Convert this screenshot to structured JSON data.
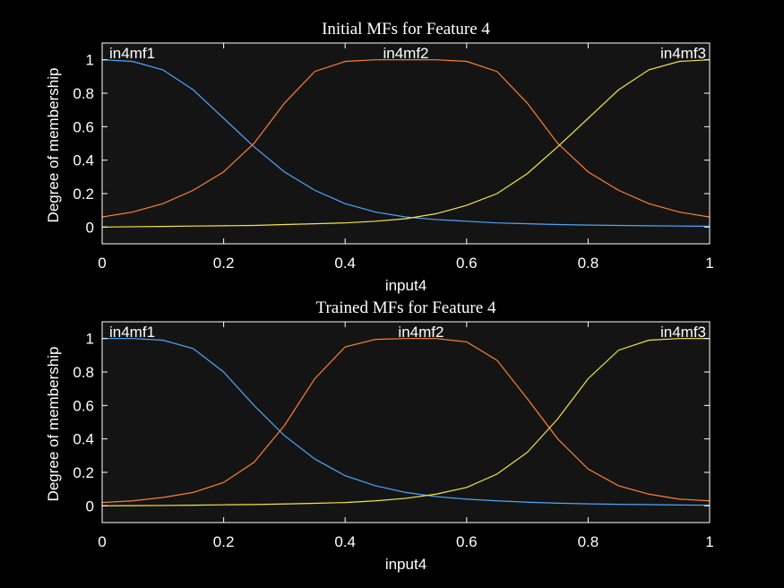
{
  "chart_data": [
    {
      "type": "line",
      "title": "Initial MFs for Feature 4",
      "xlabel": "input4",
      "ylabel": "Degree of membership",
      "xlim": [
        0,
        1
      ],
      "ylim": [
        -0.1,
        1.1
      ],
      "xticks": [
        "0",
        "0.2",
        "0.4",
        "0.6",
        "0.8",
        "1"
      ],
      "yticks": [
        "0",
        "0.2",
        "0.4",
        "0.6",
        "0.8",
        "1"
      ],
      "grid": false,
      "series": [
        {
          "name": "in4mf1",
          "color": "#4da6ff",
          "x": [
            0,
            0.05,
            0.1,
            0.15,
            0.2,
            0.25,
            0.3,
            0.35,
            0.4,
            0.45,
            0.5,
            0.55,
            0.6,
            0.65,
            0.7,
            0.75,
            0.8,
            0.85,
            0.9,
            0.95,
            1
          ],
          "y": [
            1.0,
            0.99,
            0.94,
            0.82,
            0.65,
            0.48,
            0.33,
            0.22,
            0.14,
            0.09,
            0.06,
            0.045,
            0.035,
            0.025,
            0.02,
            0.015,
            0.012,
            0.01,
            0.008,
            0.006,
            0.005
          ]
        },
        {
          "name": "in4mf2",
          "color": "#ff7f33",
          "x": [
            0,
            0.05,
            0.1,
            0.15,
            0.2,
            0.25,
            0.3,
            0.35,
            0.4,
            0.45,
            0.5,
            0.55,
            0.6,
            0.65,
            0.7,
            0.75,
            0.8,
            0.85,
            0.9,
            0.95,
            1
          ],
          "y": [
            0.06,
            0.09,
            0.14,
            0.22,
            0.33,
            0.5,
            0.74,
            0.93,
            0.99,
            1.0,
            1.0,
            1.0,
            0.99,
            0.93,
            0.74,
            0.5,
            0.33,
            0.22,
            0.14,
            0.09,
            0.06
          ]
        },
        {
          "name": "in4mf3",
          "color": "#f2e44a",
          "x": [
            0,
            0.05,
            0.1,
            0.15,
            0.2,
            0.25,
            0.3,
            0.35,
            0.4,
            0.45,
            0.5,
            0.55,
            0.6,
            0.65,
            0.7,
            0.75,
            0.8,
            0.85,
            0.9,
            0.95,
            1
          ],
          "y": [
            0.0,
            0.002,
            0.004,
            0.006,
            0.008,
            0.01,
            0.015,
            0.02,
            0.025,
            0.035,
            0.05,
            0.08,
            0.13,
            0.2,
            0.32,
            0.48,
            0.65,
            0.82,
            0.94,
            0.99,
            1.0
          ]
        }
      ],
      "annotations": [
        "in4mf1",
        "in4mf2",
        "in4mf3"
      ]
    },
    {
      "type": "line",
      "title": "Trained MFs for Feature 4",
      "xlabel": "input4",
      "ylabel": "Degree of membership",
      "xlim": [
        0,
        1
      ],
      "ylim": [
        -0.1,
        1.1
      ],
      "xticks": [
        "0",
        "0.2",
        "0.4",
        "0.6",
        "0.8",
        "1"
      ],
      "yticks": [
        "0",
        "0.2",
        "0.4",
        "0.6",
        "0.8",
        "1"
      ],
      "grid": false,
      "series": [
        {
          "name": "in4mf1",
          "color": "#4da6ff",
          "x": [
            0,
            0.05,
            0.1,
            0.15,
            0.2,
            0.25,
            0.3,
            0.35,
            0.4,
            0.45,
            0.5,
            0.55,
            0.6,
            0.65,
            0.7,
            0.75,
            0.8,
            0.85,
            0.9,
            0.95,
            1
          ],
          "y": [
            1.0,
            1.0,
            0.99,
            0.94,
            0.8,
            0.6,
            0.42,
            0.28,
            0.18,
            0.12,
            0.08,
            0.055,
            0.04,
            0.03,
            0.022,
            0.016,
            0.012,
            0.009,
            0.007,
            0.005,
            0.004
          ]
        },
        {
          "name": "in4mf2",
          "color": "#ff7f33",
          "x": [
            0,
            0.05,
            0.1,
            0.15,
            0.2,
            0.25,
            0.3,
            0.35,
            0.4,
            0.45,
            0.5,
            0.55,
            0.6,
            0.65,
            0.7,
            0.75,
            0.8,
            0.85,
            0.9,
            0.95,
            1
          ],
          "y": [
            0.02,
            0.03,
            0.05,
            0.08,
            0.14,
            0.26,
            0.48,
            0.76,
            0.95,
            0.995,
            1.0,
            1.0,
            0.98,
            0.87,
            0.64,
            0.4,
            0.22,
            0.12,
            0.07,
            0.04,
            0.03
          ]
        },
        {
          "name": "in4mf3",
          "color": "#f2e44a",
          "x": [
            0,
            0.05,
            0.1,
            0.15,
            0.2,
            0.25,
            0.3,
            0.35,
            0.4,
            0.45,
            0.5,
            0.55,
            0.6,
            0.65,
            0.7,
            0.75,
            0.8,
            0.85,
            0.9,
            0.95,
            1
          ],
          "y": [
            0.0,
            0.001,
            0.002,
            0.004,
            0.006,
            0.008,
            0.011,
            0.015,
            0.02,
            0.03,
            0.045,
            0.07,
            0.11,
            0.19,
            0.32,
            0.52,
            0.76,
            0.93,
            0.99,
            1.0,
            1.0
          ]
        }
      ],
      "annotations": [
        "in4mf1",
        "in4mf2",
        "in4mf3"
      ]
    }
  ]
}
